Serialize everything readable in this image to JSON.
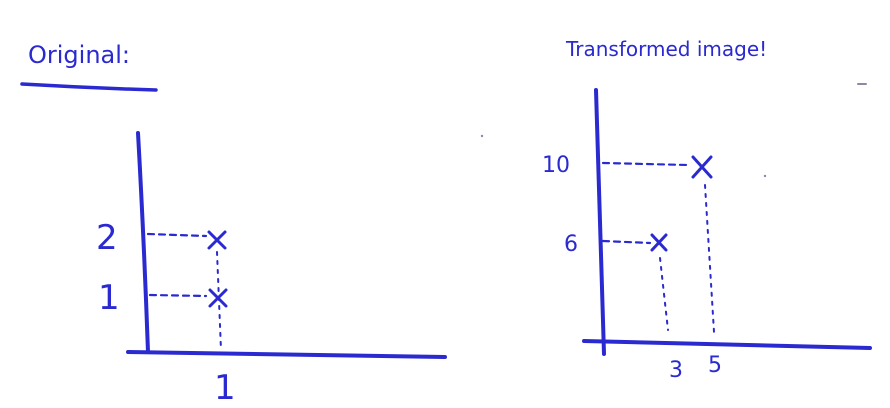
{
  "left_panel": {
    "title": "Original:",
    "y_ticks": [
      "2",
      "1"
    ],
    "x_ticks": [
      "1"
    ],
    "points": [
      {
        "x": 1,
        "y": 2
      },
      {
        "x": 1,
        "y": 1
      }
    ]
  },
  "right_panel": {
    "title": "Transformed image!",
    "y_ticks": [
      "10",
      "6"
    ],
    "x_ticks": [
      "3",
      "5"
    ],
    "points": [
      {
        "x": 5,
        "y": 10
      },
      {
        "x": 3,
        "y": 6
      }
    ]
  },
  "colors": {
    "ink": "#2a2ad0",
    "background": "#ffffff"
  }
}
